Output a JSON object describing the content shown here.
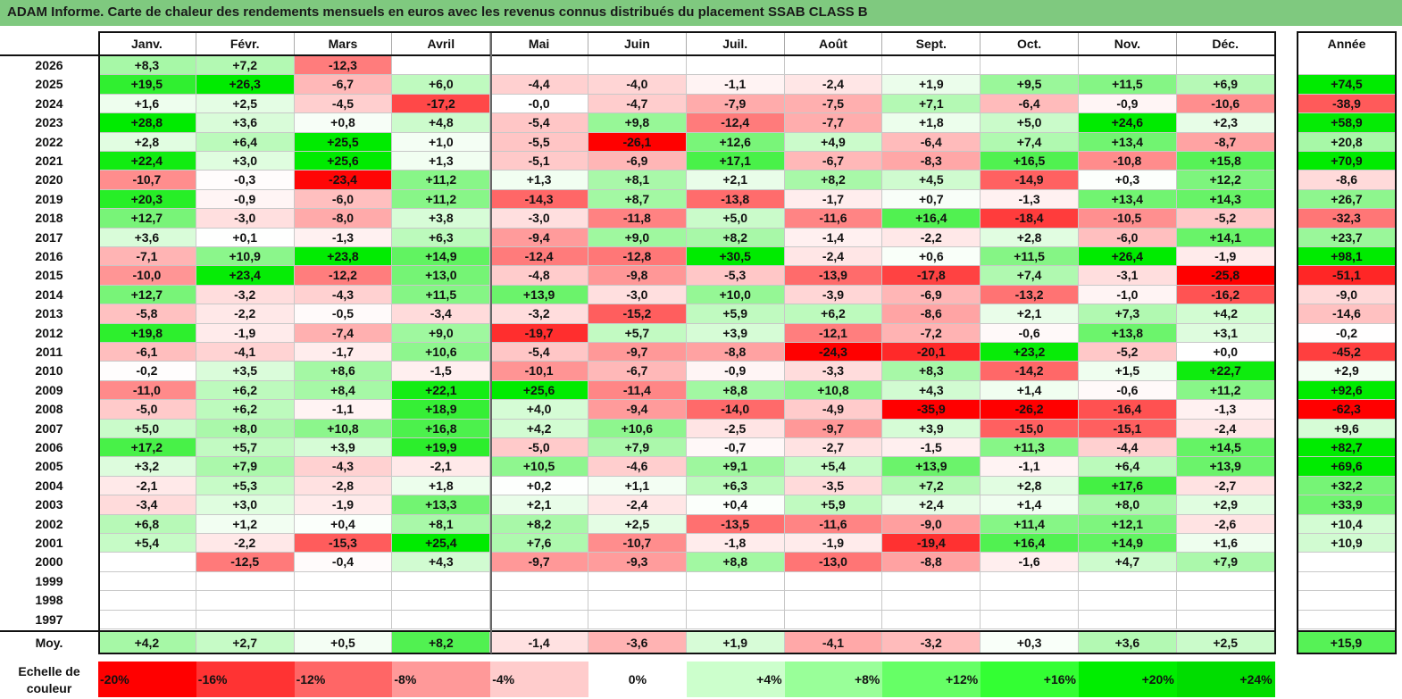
{
  "title": "ADAM Informe. Carte de chaleur des rendements mensuels en euros avec les revenus connus distribués du placement SSAB CLASS B",
  "chart_data": {
    "type": "heatmap",
    "columns": [
      "Janv.",
      "Févr.",
      "Mars",
      "Avril",
      "Mai",
      "Juin",
      "Juil.",
      "Août",
      "Sept.",
      "Oct.",
      "Nov.",
      "Déc."
    ],
    "year_column_label": "Année",
    "rows": [
      {
        "year": "2026",
        "values": [
          8.3,
          7.2,
          -12.3,
          null,
          null,
          null,
          null,
          null,
          null,
          null,
          null,
          null
        ],
        "annual": null
      },
      {
        "year": "2025",
        "values": [
          19.5,
          26.3,
          -6.7,
          6.0,
          -4.4,
          -4.0,
          -1.1,
          -2.4,
          1.9,
          9.5,
          11.5,
          6.9
        ],
        "annual": 74.5
      },
      {
        "year": "2024",
        "values": [
          1.6,
          2.5,
          -4.5,
          -17.2,
          -0.0,
          -4.7,
          -7.9,
          -7.5,
          7.1,
          -6.4,
          -0.9,
          -10.6
        ],
        "annual": -38.9
      },
      {
        "year": "2023",
        "values": [
          28.8,
          3.6,
          0.8,
          4.8,
          -5.4,
          9.8,
          -12.4,
          -7.7,
          1.8,
          5.0,
          24.6,
          2.3
        ],
        "annual": 58.9
      },
      {
        "year": "2022",
        "values": [
          2.8,
          6.4,
          25.5,
          1.0,
          -5.5,
          -26.1,
          12.6,
          4.9,
          -6.4,
          7.4,
          13.4,
          -8.7
        ],
        "annual": 20.8
      },
      {
        "year": "2021",
        "values": [
          22.4,
          3.0,
          25.6,
          1.3,
          -5.1,
          -6.9,
          17.1,
          -6.7,
          -8.3,
          16.5,
          -10.8,
          15.8
        ],
        "annual": 70.9
      },
      {
        "year": "2020",
        "values": [
          -10.7,
          -0.3,
          -23.4,
          11.2,
          1.3,
          8.1,
          2.1,
          8.2,
          4.5,
          -14.9,
          0.3,
          12.2
        ],
        "annual": -8.6
      },
      {
        "year": "2019",
        "values": [
          20.3,
          -0.9,
          -6.0,
          11.2,
          -14.3,
          8.7,
          -13.8,
          -1.7,
          0.7,
          -1.3,
          13.4,
          14.3
        ],
        "annual": 26.7
      },
      {
        "year": "2018",
        "values": [
          12.7,
          -3.0,
          -8.0,
          3.8,
          -3.0,
          -11.8,
          5.0,
          -11.6,
          16.4,
          -18.4,
          -10.5,
          -5.2
        ],
        "annual": -32.3
      },
      {
        "year": "2017",
        "values": [
          3.6,
          0.1,
          -1.3,
          6.3,
          -9.4,
          9.0,
          8.2,
          -1.4,
          -2.2,
          2.8,
          -6.0,
          14.1
        ],
        "annual": 23.7
      },
      {
        "year": "2016",
        "values": [
          -7.1,
          10.9,
          23.8,
          14.9,
          -12.4,
          -12.8,
          30.5,
          -2.4,
          0.6,
          11.5,
          26.4,
          -1.9
        ],
        "annual": 98.1
      },
      {
        "year": "2015",
        "values": [
          -10.0,
          23.4,
          -12.2,
          13.0,
          -4.8,
          -9.8,
          -5.3,
          -13.9,
          -17.8,
          7.4,
          -3.1,
          -25.8
        ],
        "annual": -51.1
      },
      {
        "year": "2014",
        "values": [
          12.7,
          -3.2,
          -4.3,
          11.5,
          13.9,
          -3.0,
          10.0,
          -3.9,
          -6.9,
          -13.2,
          -1.0,
          -16.2
        ],
        "annual": -9.0
      },
      {
        "year": "2013",
        "values": [
          -5.8,
          -2.2,
          -0.5,
          -3.4,
          -3.2,
          -15.2,
          5.9,
          6.2,
          -8.6,
          2.1,
          7.3,
          4.2
        ],
        "annual": -14.6
      },
      {
        "year": "2012",
        "values": [
          19.8,
          -1.9,
          -7.4,
          9.0,
          -19.7,
          5.7,
          3.9,
          -12.1,
          -7.2,
          -0.6,
          13.8,
          3.1
        ],
        "annual": -0.2
      },
      {
        "year": "2011",
        "values": [
          -6.1,
          -4.1,
          -1.7,
          10.6,
          -5.4,
          -9.7,
          -8.8,
          -24.3,
          -20.1,
          23.2,
          -5.2,
          0.0
        ],
        "annual": -45.2
      },
      {
        "year": "2010",
        "values": [
          -0.2,
          3.5,
          8.6,
          -1.5,
          -10.1,
          -6.7,
          -0.9,
          -3.3,
          8.3,
          -14.2,
          1.5,
          22.7
        ],
        "annual": 2.9
      },
      {
        "year": "2009",
        "values": [
          -11.0,
          6.2,
          8.4,
          22.1,
          25.6,
          -11.4,
          8.8,
          10.8,
          4.3,
          1.4,
          -0.6,
          11.2
        ],
        "annual": 92.6
      },
      {
        "year": "2008",
        "values": [
          -5.0,
          6.2,
          -1.1,
          18.9,
          4.0,
          -9.4,
          -14.0,
          -4.9,
          -35.9,
          -26.2,
          -16.4,
          -1.3
        ],
        "annual": -62.3
      },
      {
        "year": "2007",
        "values": [
          5.0,
          8.0,
          10.8,
          16.8,
          4.2,
          10.6,
          -2.5,
          -9.7,
          3.9,
          -15.0,
          -15.1,
          -2.4
        ],
        "annual": 9.6
      },
      {
        "year": "2006",
        "values": [
          17.2,
          5.7,
          3.9,
          19.9,
          -5.0,
          7.9,
          -0.7,
          -2.7,
          -1.5,
          11.3,
          -4.4,
          14.5
        ],
        "annual": 82.7
      },
      {
        "year": "2005",
        "values": [
          3.2,
          7.9,
          -4.3,
          -2.1,
          10.5,
          -4.6,
          9.1,
          5.4,
          13.9,
          -1.1,
          6.4,
          13.9
        ],
        "annual": 69.6
      },
      {
        "year": "2004",
        "values": [
          -2.1,
          5.3,
          -2.8,
          1.8,
          0.2,
          1.1,
          6.3,
          -3.5,
          7.2,
          2.8,
          17.6,
          -2.7
        ],
        "annual": 32.2
      },
      {
        "year": "2003",
        "values": [
          -3.4,
          3.0,
          -1.9,
          13.3,
          2.1,
          -2.4,
          0.4,
          5.9,
          2.4,
          1.4,
          8.0,
          2.9
        ],
        "annual": 33.9
      },
      {
        "year": "2002",
        "values": [
          6.8,
          1.2,
          0.4,
          8.1,
          8.2,
          2.5,
          -13.5,
          -11.6,
          -9.0,
          11.4,
          12.1,
          -2.6
        ],
        "annual": 10.4
      },
      {
        "year": "2001",
        "values": [
          5.4,
          -2.2,
          -15.3,
          25.4,
          7.6,
          -10.7,
          -1.8,
          -1.9,
          -19.4,
          16.4,
          14.9,
          1.6
        ],
        "annual": 10.9
      },
      {
        "year": "2000",
        "values": [
          null,
          -12.5,
          -0.4,
          4.3,
          -9.7,
          -9.3,
          8.8,
          -13.0,
          -8.8,
          -1.6,
          4.7,
          7.9
        ],
        "annual": null
      },
      {
        "year": "1999",
        "values": [
          null,
          null,
          null,
          null,
          null,
          null,
          null,
          null,
          null,
          null,
          null,
          null
        ],
        "annual": null
      },
      {
        "year": "1998",
        "values": [
          null,
          null,
          null,
          null,
          null,
          null,
          null,
          null,
          null,
          null,
          null,
          null
        ],
        "annual": null
      },
      {
        "year": "1997",
        "values": [
          null,
          null,
          null,
          null,
          null,
          null,
          null,
          null,
          null,
          null,
          null,
          null
        ],
        "annual": null
      }
    ],
    "average": {
      "label": "Moy.",
      "values": [
        4.2,
        2.7,
        0.5,
        8.2,
        -1.4,
        -3.6,
        1.9,
        -4.1,
        -3.2,
        0.3,
        3.6,
        2.5
      ],
      "annual": 15.9
    },
    "scale": {
      "label": "Echelle de couleur",
      "stops": [
        {
          "label": "-20%",
          "value": -20,
          "color": "#ff0000"
        },
        {
          "label": "-16%",
          "value": -16,
          "color": "#ff3333"
        },
        {
          "label": "-12%",
          "value": -12,
          "color": "#ff6666"
        },
        {
          "label": "-8%",
          "value": -8,
          "color": "#ff9999"
        },
        {
          "label": "-4%",
          "value": -4,
          "color": "#ffcccc"
        },
        {
          "label": "0%",
          "value": 0,
          "color": "#ffffff"
        },
        {
          "label": "+4%",
          "value": 4,
          "color": "#ccffcc"
        },
        {
          "label": "+8%",
          "value": 8,
          "color": "#99ff99"
        },
        {
          "label": "+12%",
          "value": 12,
          "color": "#66ff66"
        },
        {
          "label": "+16%",
          "value": 16,
          "color": "#33ff33"
        },
        {
          "label": "+20%",
          "value": 20,
          "color": "#00ee00"
        },
        {
          "label": "+24%",
          "value": 24,
          "color": "#00dd00"
        }
      ]
    }
  }
}
